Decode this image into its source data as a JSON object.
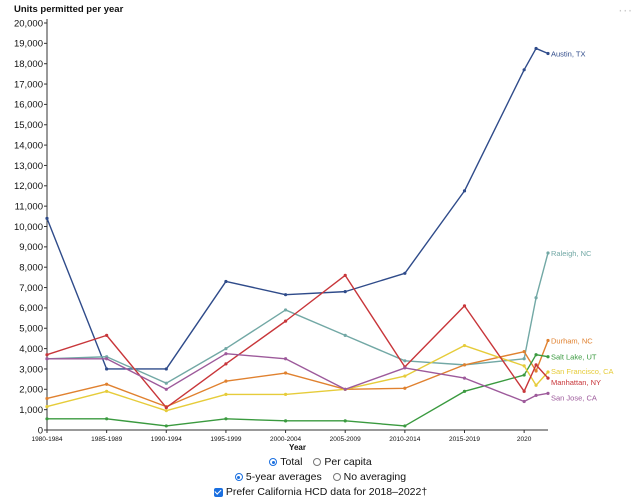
{
  "menu": {
    "icon": "more-dots-icon",
    "glyph": "···"
  },
  "chart_data": {
    "type": "line",
    "ylabel": "Units permitted per year",
    "xlabel": "Year",
    "ylim": [
      0,
      20000
    ],
    "yticks": [
      0,
      1000,
      2000,
      3000,
      4000,
      5000,
      6000,
      7000,
      8000,
      9000,
      10000,
      11000,
      12000,
      13000,
      14000,
      15000,
      16000,
      17000,
      18000,
      19000,
      20000
    ],
    "ytick_labels": [
      "0",
      "1,000",
      "2,000",
      "3,000",
      "4,000",
      "5,000",
      "6,000",
      "7,000",
      "8,000",
      "9,000",
      "10,000",
      "11,000",
      "12,000",
      "13,000",
      "14,000",
      "15,000",
      "16,000",
      "17,000",
      "18,000",
      "19,000",
      "20,000"
    ],
    "xlim": [
      1980,
      2022
    ],
    "xticks": [
      {
        "x": 1980,
        "label": "1980-1984"
      },
      {
        "x": 1985,
        "label": "1985-1989"
      },
      {
        "x": 1990,
        "label": "1990-1994"
      },
      {
        "x": 1995,
        "label": "1995-1999"
      },
      {
        "x": 2000,
        "label": "2000-2004"
      },
      {
        "x": 2005,
        "label": "2005-2009"
      },
      {
        "x": 2010,
        "label": "2010-2014"
      },
      {
        "x": 2015,
        "label": "2015-2019"
      },
      {
        "x": 2020,
        "label": "2020"
      }
    ],
    "x": [
      1980,
      1985,
      1990,
      1995,
      2000,
      2005,
      2010,
      2015,
      2020,
      2021,
      2022
    ],
    "grid": false,
    "series": [
      {
        "name": "Austin, TX",
        "color": "#2f4b8a",
        "values": [
          10400,
          3000,
          3000,
          7300,
          6650,
          6800,
          7700,
          11750,
          17700,
          18750,
          18500
        ]
      },
      {
        "name": "Raleigh, NC",
        "color": "#72a8a5",
        "values": [
          3500,
          3600,
          2300,
          4000,
          5900,
          4650,
          3400,
          3200,
          3500,
          6500,
          8700
        ]
      },
      {
        "name": "Durham, NC",
        "color": "#e0812f",
        "values": [
          1550,
          2250,
          1150,
          2400,
          2800,
          2000,
          2050,
          3200,
          3850,
          2900,
          4400
        ]
      },
      {
        "name": "Salt Lake, UT",
        "color": "#3a9a3f",
        "values": [
          550,
          550,
          200,
          550,
          450,
          450,
          200,
          1900,
          2700,
          3700,
          3600
        ]
      },
      {
        "name": "San Francisco, CA",
        "color": "#e6cc3a",
        "values": [
          1150,
          1900,
          950,
          1750,
          1750,
          2000,
          2650,
          4150,
          3150,
          2200,
          2850
        ]
      },
      {
        "name": "Manhattan, NY",
        "color": "#c8363a",
        "values": [
          3700,
          4650,
          1100,
          3250,
          5350,
          7600,
          3100,
          6100,
          1900,
          3200,
          2550
        ]
      },
      {
        "name": "San Jose, CA",
        "color": "#9d5a9b",
        "values": [
          3500,
          3500,
          2000,
          3750,
          3500,
          2000,
          3050,
          2550,
          1400,
          1700,
          1800
        ]
      }
    ]
  },
  "controls": {
    "measure": {
      "options": [
        {
          "label": "Total",
          "checked": true
        },
        {
          "label": "Per capita",
          "checked": false
        }
      ]
    },
    "averaging": {
      "options": [
        {
          "label": "5-year averages",
          "checked": true
        },
        {
          "label": "No averaging",
          "checked": false
        }
      ]
    },
    "hcd": {
      "label": "Prefer California HCD data for 2018–2022†",
      "checked": true
    }
  }
}
